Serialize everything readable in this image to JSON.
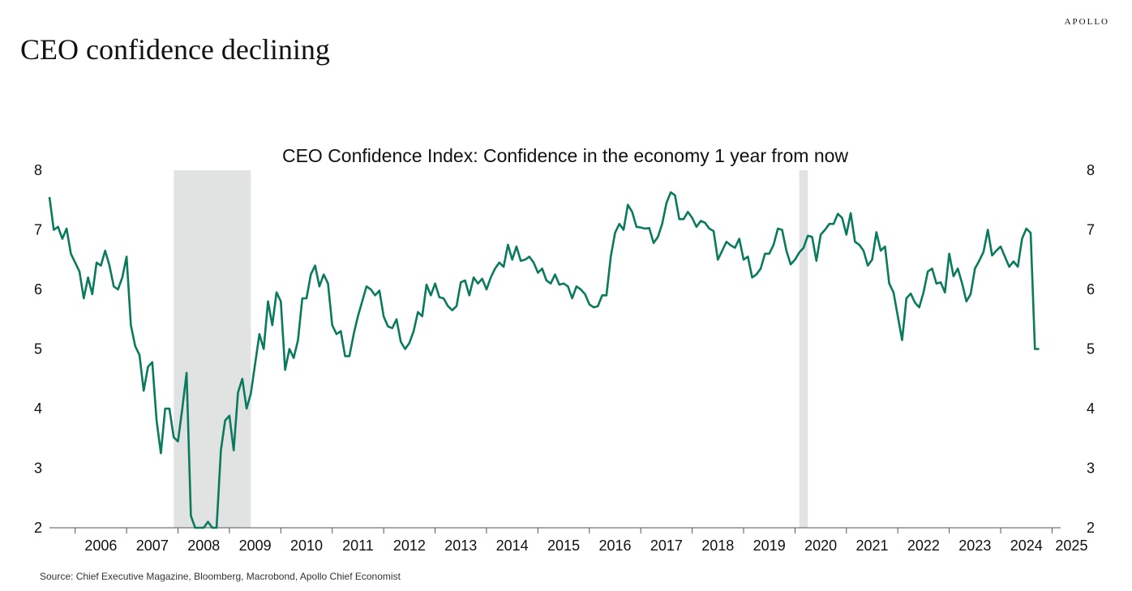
{
  "brand": "APOLLO",
  "headline": "CEO confidence declining",
  "source": "Source: Chief Executive Magazine, Bloomberg, Macrobond, Apollo Chief Economist",
  "colors": {
    "line": "#0a7a5c",
    "recession": "#e1e3e2",
    "axis": "#555555"
  },
  "chart_data": {
    "type": "line",
    "title": "CEO Confidence Index: Confidence in the economy 1 year from now",
    "xlabel": "",
    "ylabel": "",
    "ylim": [
      2,
      8
    ],
    "xlim": [
      "2005-07",
      "2025-03"
    ],
    "y_ticks": [
      2,
      3,
      4,
      5,
      6,
      7,
      8
    ],
    "x_tick_labels": [
      "2006",
      "2007",
      "2008",
      "2009",
      "2010",
      "2011",
      "2012",
      "2013",
      "2014",
      "2015",
      "2016",
      "2017",
      "2018",
      "2019",
      "2020",
      "2021",
      "2022",
      "2023",
      "2024",
      "2025"
    ],
    "dual_y_axis": true,
    "grid": false,
    "recessions": [
      {
        "start": "2007-12",
        "end": "2009-06"
      },
      {
        "start": "2020-02",
        "end": "2020-04"
      }
    ],
    "series": [
      {
        "frequency": "monthly",
        "start": "2005-07",
        "values": [
          7.55,
          7.0,
          7.05,
          6.85,
          7.02,
          6.6,
          6.45,
          6.3,
          5.85,
          6.2,
          5.92,
          6.45,
          6.4,
          6.65,
          6.4,
          6.05,
          6.0,
          6.2,
          6.55,
          5.4,
          5.05,
          4.9,
          4.3,
          4.7,
          4.78,
          3.8,
          3.25,
          4.0,
          4.0,
          3.52,
          3.45,
          4.0,
          4.6,
          2.2,
          1.9,
          1.8,
          1.9,
          2.1,
          1.7,
          1.8,
          3.3,
          3.8,
          3.88,
          3.3,
          4.27,
          4.5,
          4.0,
          4.25,
          4.75,
          5.25,
          5.0,
          5.8,
          5.4,
          5.95,
          5.8,
          4.65,
          5.0,
          4.85,
          5.15,
          5.85,
          5.85,
          6.25,
          6.4,
          6.05,
          6.25,
          6.1,
          5.4,
          5.25,
          5.3,
          4.88,
          4.88,
          5.25,
          5.55,
          5.8,
          6.05,
          6.0,
          5.9,
          5.98,
          5.55,
          5.38,
          5.35,
          5.5,
          5.12,
          5.0,
          5.1,
          5.3,
          5.62,
          5.55,
          6.08,
          5.9,
          6.1,
          5.87,
          5.85,
          5.72,
          5.65,
          5.72,
          6.12,
          6.15,
          5.9,
          6.2,
          6.1,
          6.18,
          6.0,
          6.2,
          6.35,
          6.45,
          6.38,
          6.75,
          6.5,
          6.72,
          6.48,
          6.5,
          6.55,
          6.45,
          6.28,
          6.35,
          6.15,
          6.1,
          6.25,
          6.08,
          6.1,
          6.05,
          5.85,
          6.05,
          6.0,
          5.92,
          5.75,
          5.7,
          5.72,
          5.9,
          5.9,
          6.55,
          6.95,
          7.1,
          7.0,
          7.42,
          7.3,
          7.05,
          7.04,
          7.02,
          7.03,
          6.78,
          6.88,
          7.1,
          7.45,
          7.63,
          7.58,
          7.18,
          7.18,
          7.3,
          7.2,
          7.05,
          7.15,
          7.12,
          7.02,
          6.98,
          6.5,
          6.65,
          6.8,
          6.74,
          6.7,
          6.85,
          6.5,
          6.55,
          6.2,
          6.25,
          6.35,
          6.6,
          6.6,
          6.75,
          7.02,
          7.0,
          6.65,
          6.42,
          6.5,
          6.62,
          6.7,
          6.9,
          6.88,
          6.48,
          6.92,
          7.0,
          7.1,
          7.1,
          7.27,
          7.2,
          6.92,
          7.28,
          6.8,
          6.75,
          6.65,
          6.4,
          6.5,
          6.96,
          6.65,
          6.72,
          6.1,
          5.95,
          5.55,
          5.15,
          5.85,
          5.93,
          5.78,
          5.7,
          5.95,
          6.3,
          6.35,
          6.1,
          6.12,
          5.95,
          6.6,
          6.22,
          6.35,
          6.1,
          5.8,
          5.92,
          6.35,
          6.48,
          6.63,
          7.0,
          6.57,
          6.65,
          6.72,
          6.55,
          6.38,
          6.47,
          6.38,
          6.85,
          7.02,
          6.95,
          5.0,
          5.0
        ]
      }
    ]
  }
}
